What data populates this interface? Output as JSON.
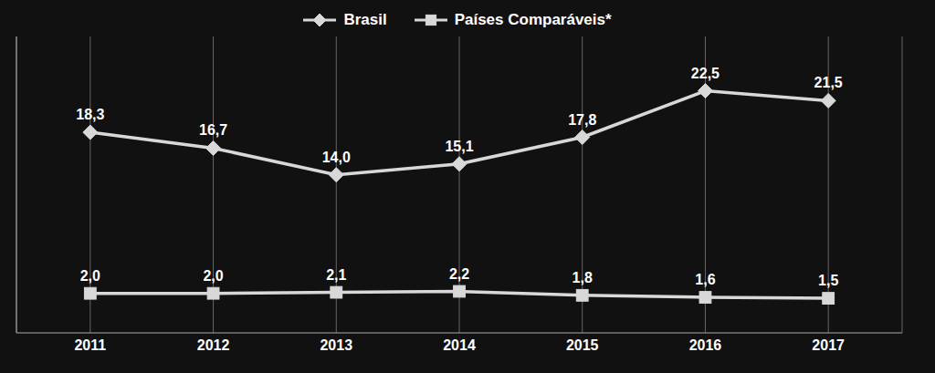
{
  "chart_data": {
    "type": "line",
    "x": [
      2011,
      2012,
      2013,
      2014,
      2015,
      2016,
      2017
    ],
    "xlim": [
      2010.4,
      2017.6
    ],
    "xticks": [
      2011,
      2012,
      2013,
      2014,
      2015,
      2016,
      2017
    ],
    "ylim": [
      -2,
      28
    ],
    "series": [
      {
        "name": "Brasil",
        "color": "#d8d8d8",
        "marker": "diamond",
        "values": [
          18.3,
          16.7,
          14.0,
          15.1,
          17.8,
          22.5,
          21.5
        ],
        "value_labels": [
          "18,3",
          "16,7",
          "14,0",
          "15,1",
          "17,8",
          "22,5",
          "21,5"
        ]
      },
      {
        "name": "Países Comparáveis*",
        "color": "#d8d8d8",
        "marker": "square",
        "values": [
          2.0,
          2.0,
          2.1,
          2.2,
          1.8,
          1.6,
          1.5
        ],
        "value_labels": [
          "2,0",
          "2,0",
          "2,1",
          "2,2",
          "1,8",
          "1,6",
          "1,5"
        ]
      }
    ],
    "data_labels": true,
    "tick_labels": "x",
    "grid": true,
    "legend": "top"
  }
}
